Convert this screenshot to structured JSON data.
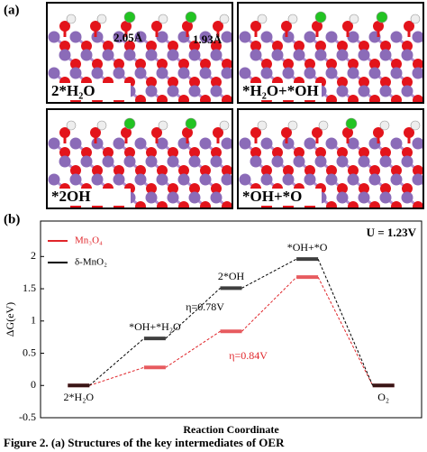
{
  "panel_a": {
    "label": "(a)",
    "structures": [
      {
        "label": "2*H₂O",
        "annotations": [
          "2.05Å",
          "1.93Å"
        ]
      },
      {
        "label": "*H₂O+*OH"
      },
      {
        "label": "*2OH"
      },
      {
        "label": "*OH+*O"
      }
    ]
  },
  "chart_data": {
    "type": "energy-levels",
    "panel_label": "(b)",
    "annotation": "U = 1.23V",
    "x_label": "Reaction Coordinate",
    "y_label": "ΔG(eV)",
    "categories": [
      "2*H₂O",
      "*OH+*H₂O",
      "2*OH",
      "*OH+*O",
      "O₂"
    ],
    "series": [
      {
        "name": "Mn₃O₄",
        "color": "#e0252a",
        "values": [
          0,
          0.28,
          0.84,
          1.68,
          0
        ],
        "overpotential_label": "η=0.84V"
      },
      {
        "name": "δ-MnO₂",
        "color": "#000000",
        "values": [
          0,
          0.73,
          1.51,
          1.96,
          0
        ],
        "overpotential_label": "η=0.78V"
      }
    ],
    "ylim": [
      -0.5,
      2.55
    ],
    "yticks": [
      -0.5,
      0,
      0.5,
      1,
      1.5,
      2
    ],
    "legend": "upper left"
  },
  "caption": "Figure 2. (a) Structures of the key intermediates of OER"
}
